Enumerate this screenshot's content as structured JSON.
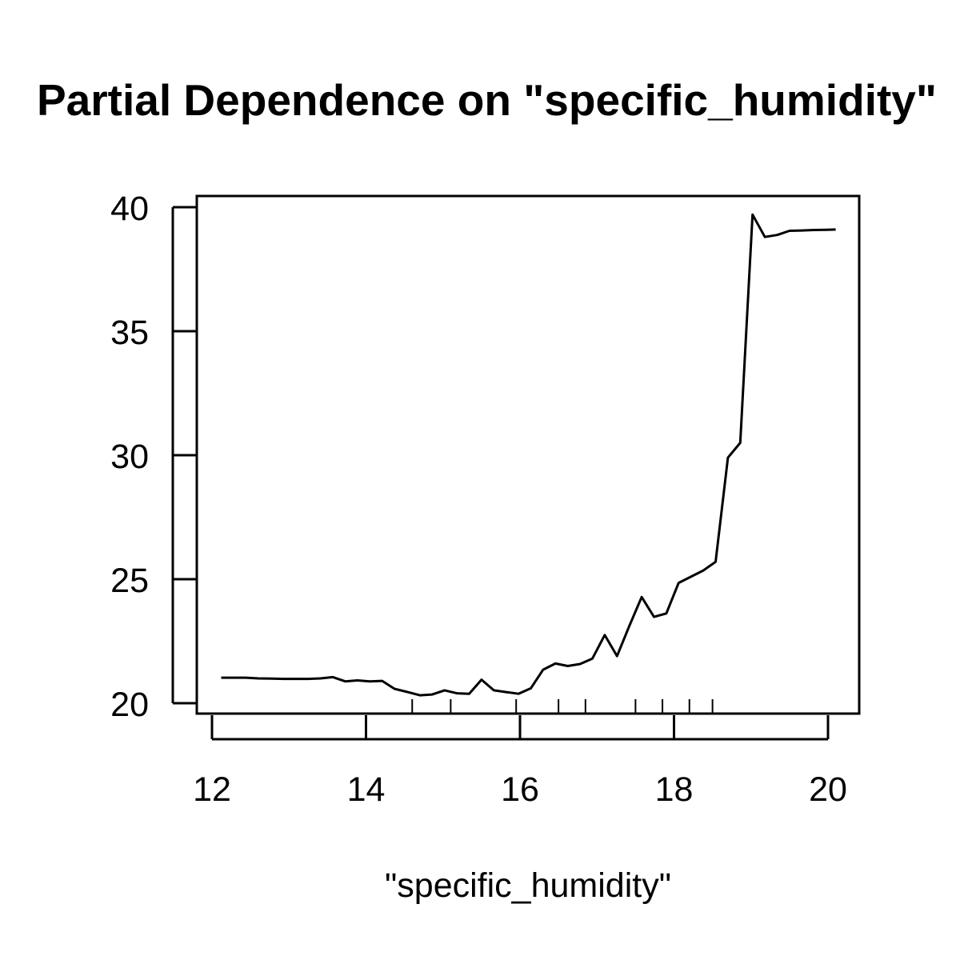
{
  "chart_data": {
    "type": "line",
    "title": "Partial Dependence on \"specific_humidity\"",
    "xlabel": "\"specific_humidity\"",
    "ylabel": "",
    "xlim": [
      11.8,
      20.4
    ],
    "ylim": [
      19.6,
      40.5
    ],
    "xticks": [
      12,
      14,
      16,
      18,
      20
    ],
    "xtick_labels": [
      "12",
      "14",
      "16",
      "18",
      "20"
    ],
    "yticks": [
      20,
      25,
      30,
      35,
      40
    ],
    "ytick_labels": [
      "20",
      "25",
      "30",
      "35",
      "40"
    ],
    "grid": false,
    "line_color": "#000000",
    "series": [
      {
        "x": [
          12.12,
          12.44,
          12.6,
          12.77,
          12.93,
          13.09,
          13.25,
          13.41,
          13.57,
          13.73,
          13.89,
          14.05,
          14.21,
          14.37,
          14.54,
          14.7,
          14.86,
          15.02,
          15.18,
          15.34,
          15.5,
          15.66,
          15.82,
          15.98,
          16.14,
          16.3,
          16.46,
          16.62,
          16.78,
          16.94,
          17.1,
          17.26,
          17.42,
          17.58,
          17.74,
          17.9,
          18.06,
          18.22,
          18.38,
          18.54,
          18.7,
          18.86,
          19.02,
          19.18,
          19.34,
          19.5,
          19.66,
          19.82,
          19.98,
          20.1
        ],
        "y": [
          21.03,
          21.03,
          21.0,
          20.99,
          20.98,
          20.98,
          20.98,
          21.0,
          21.05,
          20.88,
          20.92,
          20.88,
          20.9,
          20.58,
          20.45,
          20.32,
          20.35,
          20.52,
          20.4,
          20.38,
          20.95,
          20.52,
          20.45,
          20.38,
          20.6,
          21.35,
          21.6,
          21.5,
          21.58,
          21.8,
          22.75,
          21.9,
          23.12,
          24.28,
          23.48,
          23.62,
          24.85,
          25.1,
          25.35,
          25.7,
          29.9,
          30.5,
          39.7,
          38.8,
          38.88,
          39.05,
          39.06,
          39.08,
          39.09,
          39.1
        ]
      }
    ],
    "rug": [
      14.6,
      15.1,
      15.95,
      16.5,
      16.85,
      17.5,
      17.85,
      18.2,
      18.5
    ]
  }
}
